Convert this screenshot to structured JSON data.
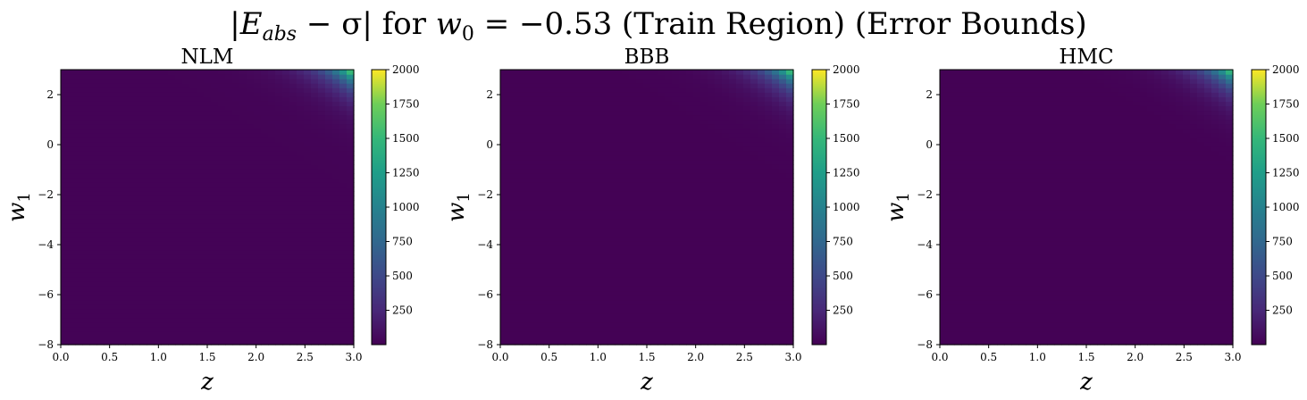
{
  "figure": {
    "suptitle": "|E_abs − σ| for w_0 = −0.53 (Train Region) (Error Bounds)",
    "suptitle_parts": {
      "bar_left": "|",
      "e": "E",
      "e_sub": "abs",
      "minus_sigma": " − σ| for ",
      "w": "w",
      "w_sub": "0",
      "value": " = −0.53 (Train Region) (Error Bounds)"
    }
  },
  "chart_data": [
    {
      "type": "heatmap",
      "title": "NLM",
      "xlabel": "z",
      "ylabel": "w_1",
      "ylabel_parts": {
        "w": "w",
        "sub": "1"
      },
      "xlim": [
        0.0,
        3.0
      ],
      "ylim": [
        -8,
        3
      ],
      "xticks": [
        "0.0",
        "0.5",
        "1.0",
        "1.5",
        "2.0",
        "2.5",
        "3.0"
      ],
      "yticks": [
        "−8",
        "−6",
        "−4",
        "−2",
        "0",
        "2"
      ],
      "colorbar": {
        "min": 0,
        "max": 2000,
        "ticks": [
          "250",
          "500",
          "750",
          "1000",
          "1250",
          "1500",
          "1750",
          "2000"
        ]
      },
      "colormap": "viridis",
      "value_peak": 2000,
      "value_floor": 15,
      "description": "values near 0 across most of the domain, rising sharply toward z=3, w_1=3"
    },
    {
      "type": "heatmap",
      "title": "BBB",
      "xlabel": "z",
      "ylabel": "w_1",
      "ylabel_parts": {
        "w": "w",
        "sub": "1"
      },
      "xlim": [
        0.0,
        3.0
      ],
      "ylim": [
        -8,
        3
      ],
      "xticks": [
        "0.0",
        "0.5",
        "1.0",
        "1.5",
        "2.0",
        "2.5",
        "3.0"
      ],
      "yticks": [
        "−8",
        "−6",
        "−4",
        "−2",
        "0",
        "2"
      ],
      "colorbar": {
        "min": 0,
        "max": 2000,
        "ticks": [
          "250",
          "500",
          "750",
          "1000",
          "1250",
          "1500",
          "1750",
          "2000"
        ]
      },
      "colormap": "viridis",
      "value_peak": 1950,
      "value_floor": 8,
      "description": "values near 0 across most of the domain, rising sharply toward z=3, w_1=3"
    },
    {
      "type": "heatmap",
      "title": "HMC",
      "xlabel": "z",
      "ylabel": "w_1",
      "ylabel_parts": {
        "w": "w",
        "sub": "1"
      },
      "xlim": [
        0.0,
        3.0
      ],
      "ylim": [
        -8,
        3
      ],
      "xticks": [
        "0.0",
        "0.5",
        "1.0",
        "1.5",
        "2.0",
        "2.5",
        "3.0"
      ],
      "yticks": [
        "−8",
        "−6",
        "−4",
        "−2",
        "0",
        "2"
      ],
      "colorbar": {
        "min": 0,
        "max": 2000,
        "ticks": [
          "250",
          "500",
          "750",
          "1000",
          "1250",
          "1500",
          "1750",
          "2000"
        ]
      },
      "colormap": "viridis",
      "value_peak": 1900,
      "value_floor": 5,
      "description": "values near 0 across most of the domain, rising sharply toward z=3, w_1=3"
    }
  ]
}
